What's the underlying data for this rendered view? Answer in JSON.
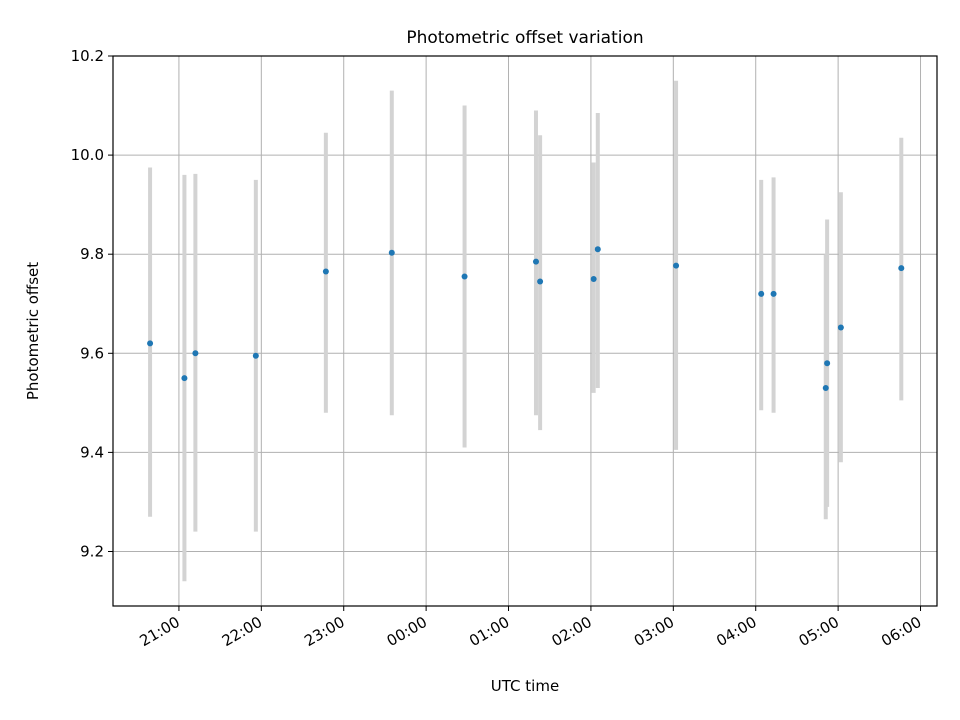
{
  "chart_data": {
    "type": "scatter",
    "title": "Photometric offset variation",
    "xlabel": "UTC time",
    "ylabel": "Photometric offset",
    "x_axis_kind": "time",
    "x_range": [
      "20:12",
      "06:12"
    ],
    "ylim": [
      9.09,
      10.2
    ],
    "y_ticks": [
      9.2,
      9.4,
      9.6,
      9.8,
      10.0,
      10.2
    ],
    "y_tick_labels": [
      "9.2",
      "9.4",
      "9.6",
      "9.8",
      "10.0",
      "10.2"
    ],
    "x_ticks": [
      "21:00",
      "22:00",
      "23:00",
      "00:00",
      "01:00",
      "02:00",
      "03:00",
      "04:00",
      "05:00",
      "06:00"
    ],
    "grid": true,
    "colors": {
      "point": "#1f77b4",
      "error_bar": "#d3d3d3"
    },
    "points": [
      {
        "time": "20:39",
        "y": 9.62,
        "ylow": 9.27,
        "yhigh": 9.975
      },
      {
        "time": "21:04",
        "y": 9.55,
        "ylow": 9.14,
        "yhigh": 9.96
      },
      {
        "time": "21:12",
        "y": 9.6,
        "ylow": 9.24,
        "yhigh": 9.962
      },
      {
        "time": "21:56",
        "y": 9.595,
        "ylow": 9.24,
        "yhigh": 9.95
      },
      {
        "time": "22:47",
        "y": 9.765,
        "ylow": 9.48,
        "yhigh": 10.045
      },
      {
        "time": "23:35",
        "y": 9.803,
        "ylow": 9.475,
        "yhigh": 10.13
      },
      {
        "time": "00:28",
        "y": 9.755,
        "ylow": 9.41,
        "yhigh": 10.1
      },
      {
        "time": "01:20",
        "y": 9.785,
        "ylow": 9.475,
        "yhigh": 10.09
      },
      {
        "time": "01:23",
        "y": 9.745,
        "ylow": 9.445,
        "yhigh": 10.04
      },
      {
        "time": "02:02",
        "y": 9.75,
        "ylow": 9.52,
        "yhigh": 9.985
      },
      {
        "time": "02:05",
        "y": 9.81,
        "ylow": 9.53,
        "yhigh": 10.085
      },
      {
        "time": "03:02",
        "y": 9.777,
        "ylow": 9.405,
        "yhigh": 10.15
      },
      {
        "time": "04:04",
        "y": 9.72,
        "ylow": 9.485,
        "yhigh": 9.95
      },
      {
        "time": "04:13",
        "y": 9.72,
        "ylow": 9.48,
        "yhigh": 9.955
      },
      {
        "time": "04:51",
        "y": 9.53,
        "ylow": 9.265,
        "yhigh": 9.8
      },
      {
        "time": "04:52",
        "y": 9.58,
        "ylow": 9.29,
        "yhigh": 9.87
      },
      {
        "time": "05:02",
        "y": 9.652,
        "ylow": 9.38,
        "yhigh": 9.925
      },
      {
        "time": "05:46",
        "y": 9.772,
        "ylow": 9.505,
        "yhigh": 10.035
      }
    ]
  }
}
